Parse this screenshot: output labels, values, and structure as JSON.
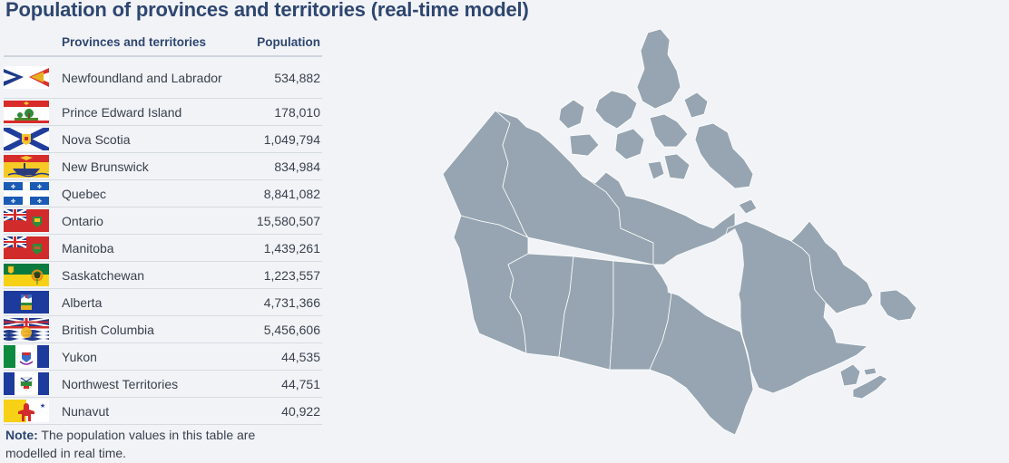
{
  "title": "Population of provinces and territories (real-time model)",
  "table": {
    "headers": {
      "region": "Provinces and territories",
      "population": "Population"
    },
    "rows": [
      {
        "name": "Newfoundland and Labrador",
        "population": "534,882",
        "flag": "newfoundland-flag-icon"
      },
      {
        "name": "Prince Edward Island",
        "population": "178,010",
        "flag": "pei-flag-icon"
      },
      {
        "name": "Nova Scotia",
        "population": "1,049,794",
        "flag": "nova-scotia-flag-icon"
      },
      {
        "name": "New Brunswick",
        "population": "834,984",
        "flag": "new-brunswick-flag-icon"
      },
      {
        "name": "Quebec",
        "population": "8,841,082",
        "flag": "quebec-flag-icon"
      },
      {
        "name": "Ontario",
        "population": "15,580,507",
        "flag": "ontario-flag-icon"
      },
      {
        "name": "Manitoba",
        "population": "1,439,261",
        "flag": "manitoba-flag-icon"
      },
      {
        "name": "Saskatchewan",
        "population": "1,223,557",
        "flag": "saskatchewan-flag-icon"
      },
      {
        "name": "Alberta",
        "population": "4,731,366",
        "flag": "alberta-flag-icon"
      },
      {
        "name": "British Columbia",
        "population": "5,456,606",
        "flag": "british-columbia-flag-icon"
      },
      {
        "name": "Yukon",
        "population": "44,535",
        "flag": "yukon-flag-icon"
      },
      {
        "name": "Northwest Territories",
        "population": "44,751",
        "flag": "northwest-territories-flag-icon"
      },
      {
        "name": "Nunavut",
        "population": "40,922",
        "flag": "nunavut-flag-icon"
      }
    ]
  },
  "note": {
    "label": "Note:",
    "text": "The population values in this table are modelled in real time."
  },
  "map": {
    "region": "canada-map",
    "fill": "#96a5b1",
    "border": "#ffffff"
  },
  "colors": {
    "title": "#2e4670",
    "background": "#f1f3f6",
    "divider": "#d6dbe2"
  }
}
